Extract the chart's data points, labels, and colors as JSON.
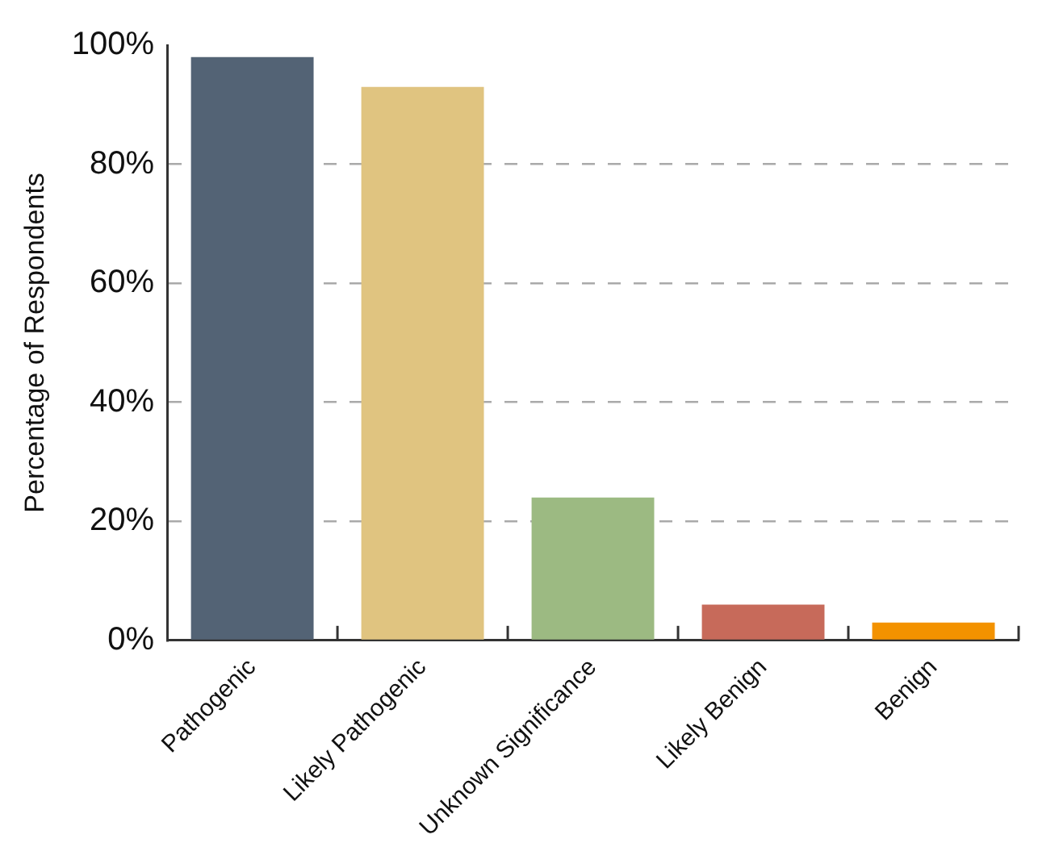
{
  "chart_data": {
    "type": "bar",
    "ylabel": "Percentage of Respondents",
    "categories": [
      "Pathogenic",
      "Likely Pathogenic",
      "Unknown Significance",
      "Likely Benign",
      "Benign"
    ],
    "values": [
      98,
      93,
      24,
      6,
      3
    ],
    "colors": [
      "#536375",
      "#e0c480",
      "#9cba82",
      "#c76a5a",
      "#f39200"
    ],
    "ylim": [
      0,
      100
    ],
    "yticks": [
      {
        "value": 0,
        "label": "0%"
      },
      {
        "value": 20,
        "label": "20%"
      },
      {
        "value": 40,
        "label": "40%"
      },
      {
        "value": 60,
        "label": "60%"
      },
      {
        "value": 80,
        "label": "80%"
      },
      {
        "value": 100,
        "label": "100%"
      }
    ],
    "grid": "y",
    "legend": false
  }
}
